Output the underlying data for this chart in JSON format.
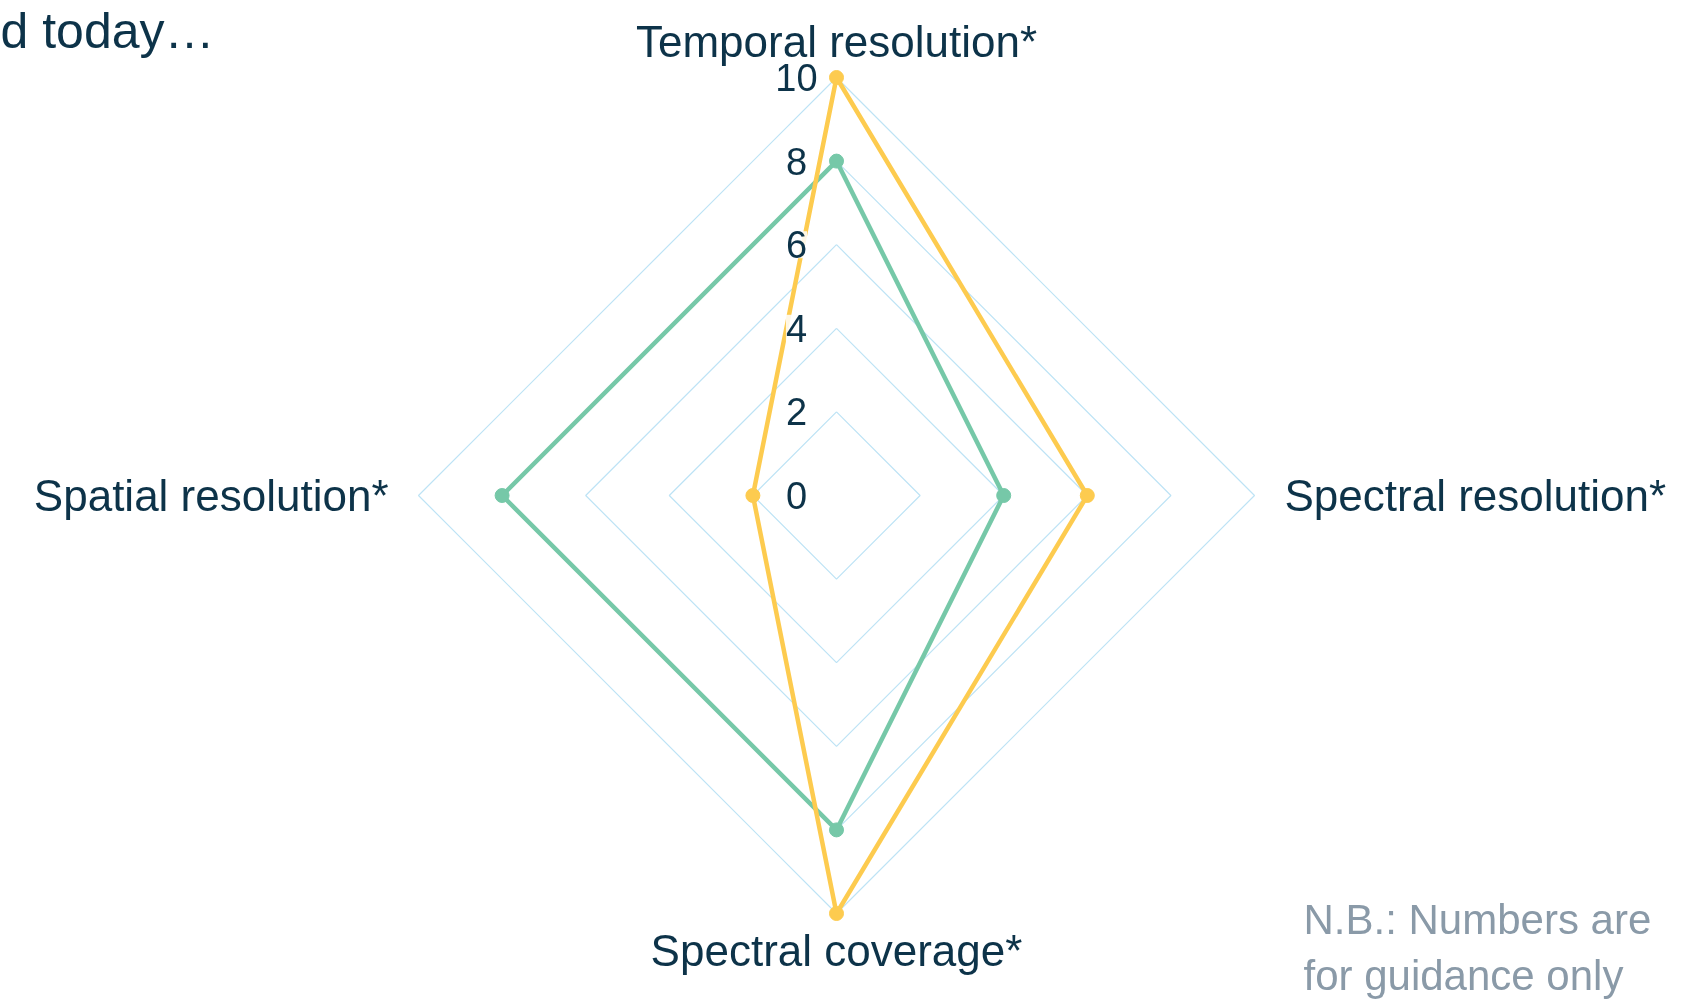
{
  "chart_data": {
    "type": "radar",
    "title": "d today…",
    "categories": [
      "Temporal resolution*",
      "Spectral resolution*",
      "Spectral coverage*",
      "Spatial resolution*"
    ],
    "series": [
      {
        "color": "#76c8a8",
        "values": [
          8,
          4,
          8,
          8
        ]
      },
      {
        "color": "#fdcb4f",
        "values": [
          10,
          6,
          10,
          2
        ]
      }
    ],
    "ylim": [
      0,
      10
    ],
    "yticks": [
      0,
      2,
      4,
      6,
      8,
      10
    ],
    "grid": true,
    "marker": "circle",
    "line_style": "solid",
    "annotations": [
      "N.B.: Numbers are\nfor guidance only"
    ]
  }
}
